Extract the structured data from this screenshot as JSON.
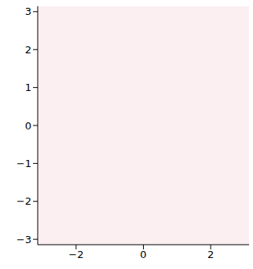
{
  "chart_data": {
    "type": "heatmap",
    "xlim": [
      -3.1416,
      3.1416
    ],
    "ylim": [
      -3.1416,
      3.1416
    ],
    "xticks": [
      -2,
      0,
      2
    ],
    "yticks": [
      -3,
      -2,
      -1,
      0,
      1,
      2,
      3
    ],
    "color": "#f8e4ea",
    "grid": false
  }
}
